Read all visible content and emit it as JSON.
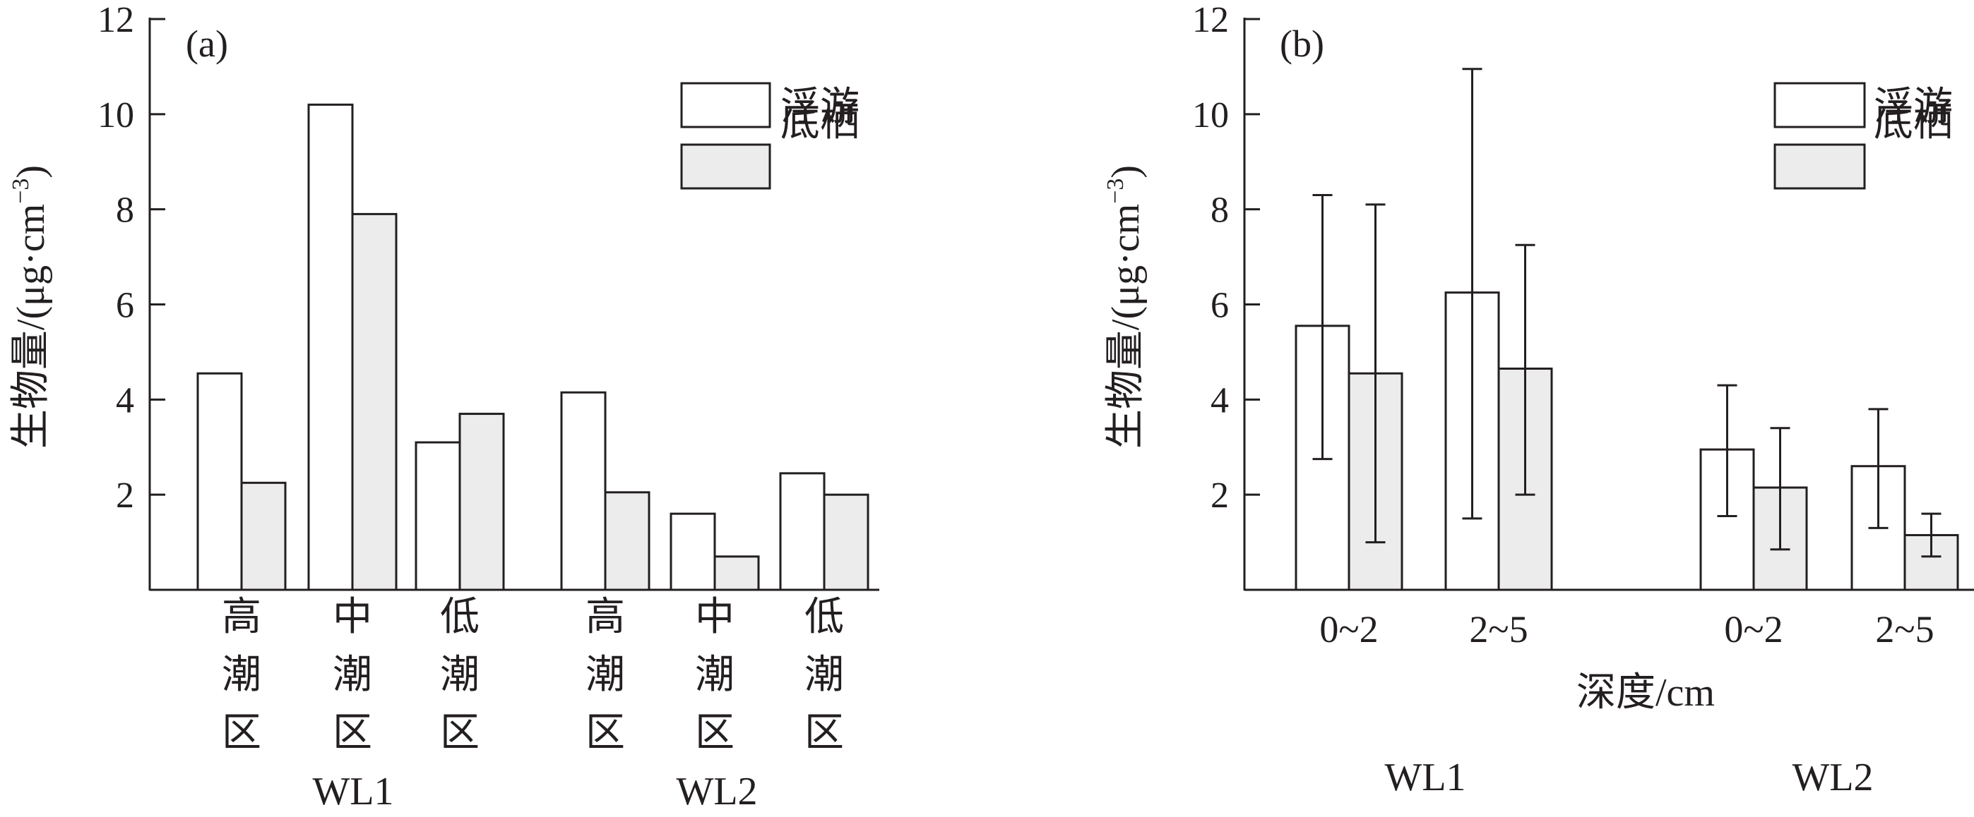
{
  "chart_data": [
    {
      "type": "bar",
      "panel_label": "(a)",
      "ylabel": "生物量/(μg·cm",
      "ylabel_sup": "−3",
      "ylabel_close": ")",
      "ylim": [
        0,
        12
      ],
      "yticks": [
        2,
        4,
        6,
        8,
        10,
        12
      ],
      "groups": [
        {
          "name": "WL1",
          "categories": [
            "高潮区",
            "中潮区",
            "低潮区"
          ]
        },
        {
          "name": "WL2",
          "categories": [
            "高潮区",
            "中潮区",
            "低潮区"
          ]
        }
      ],
      "series": [
        {
          "name": "浮游",
          "values": [
            4.55,
            10.2,
            3.1,
            4.15,
            1.6,
            2.45
          ]
        },
        {
          "name": "底栖",
          "values": [
            2.25,
            7.9,
            3.7,
            2.05,
            0.7,
            2.0
          ]
        }
      ],
      "legend_position": "top-right"
    },
    {
      "type": "bar",
      "panel_label": "(b)",
      "ylabel": "生物量/(μg·cm",
      "ylabel_sup": "−3",
      "ylabel_close": ")",
      "xlabel": "深度/cm",
      "ylim": [
        0,
        12
      ],
      "yticks": [
        2,
        4,
        6,
        8,
        10,
        12
      ],
      "groups": [
        {
          "name": "WL1",
          "categories": [
            "0~2",
            "2~5"
          ]
        },
        {
          "name": "WL2",
          "categories": [
            "0~2",
            "2~5"
          ]
        }
      ],
      "series": [
        {
          "name": "浮游",
          "values": [
            5.55,
            6.25,
            2.95,
            2.6
          ],
          "error_low": [
            2.75,
            1.5,
            1.55,
            1.3
          ],
          "error_high": [
            8.3,
            10.95,
            4.3,
            3.8
          ]
        },
        {
          "name": "底栖",
          "values": [
            4.55,
            4.65,
            2.15,
            1.15
          ],
          "error_low": [
            1.0,
            2.0,
            0.85,
            0.7
          ],
          "error_high": [
            8.1,
            7.25,
            3.4,
            1.6
          ]
        }
      ],
      "legend_position": "top-right"
    }
  ],
  "colors": {
    "series_1": "#ffffff",
    "series_2": "#ececec",
    "stroke": "#231f20"
  }
}
